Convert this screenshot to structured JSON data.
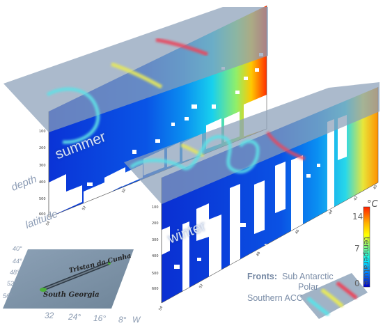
{
  "labels": {
    "summer": "summer",
    "winter": "winter",
    "depth": "depth",
    "latitude": "latitude"
  },
  "summer_panel": {
    "depth_ticks": [
      "100",
      "200",
      "300",
      "400",
      "500",
      "600"
    ],
    "lat_ticks": [
      "54",
      "52",
      "50"
    ]
  },
  "winter_panel": {
    "depth_ticks": [
      "100",
      "200",
      "300",
      "400",
      "500",
      "600"
    ],
    "lat_ticks": [
      "54",
      "52",
      "48",
      "46",
      "44",
      "42",
      "40"
    ]
  },
  "colorbar": {
    "unit": "°C",
    "title": "temperature",
    "ticks": [
      "14",
      "7",
      "0"
    ],
    "colors": [
      "#ff1f00",
      "#ffb000",
      "#ffff00",
      "#7fff7f",
      "#00ffff",
      "#0080ff",
      "#0000c8"
    ]
  },
  "fronts": {
    "title": "Fronts:",
    "items": [
      {
        "name": "Sub Antarctic",
        "color": "#e8485e"
      },
      {
        "name": "Polar",
        "color": "#e6e85c"
      },
      {
        "name": "Southern ACC",
        "color": "#5fe0e6"
      }
    ]
  },
  "map": {
    "place_north": "Tristan da Cunha",
    "place_south": "South Georgia",
    "lat_ticks": [
      "40°",
      "44°",
      "48°",
      "52°",
      "56°"
    ],
    "lon_ticks": [
      "32",
      "24°",
      "16°",
      "8°",
      "W"
    ]
  }
}
